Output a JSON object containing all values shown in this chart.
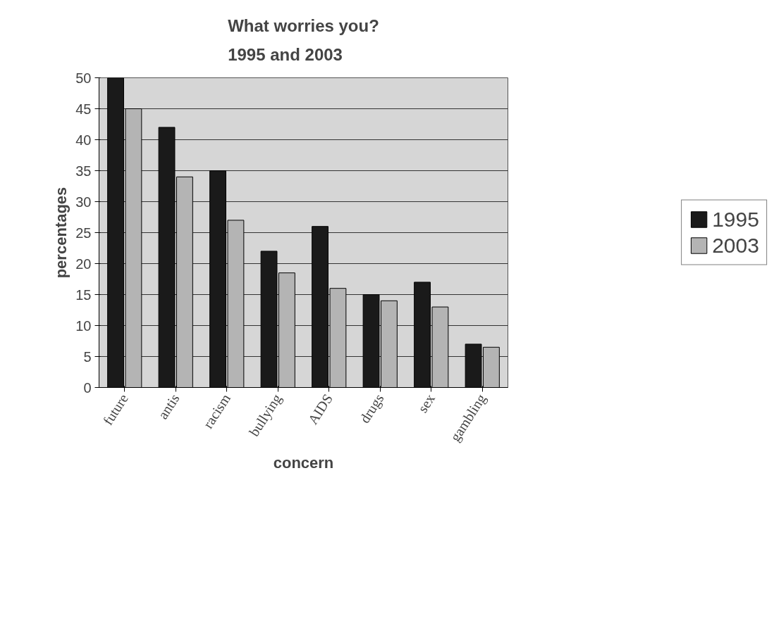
{
  "chart_data": {
    "type": "bar",
    "title": "What worries you?\n1995 and 2003",
    "xlabel": "concern",
    "ylabel": "percentages",
    "categories": [
      "future",
      "antis",
      "racism",
      "bullying",
      "AIDS",
      "drugs",
      "sex",
      "gambling"
    ],
    "series": [
      {
        "name": "1995",
        "color": "#1a1a1a",
        "values": [
          50,
          42,
          35,
          22,
          26,
          15,
          17,
          7
        ]
      },
      {
        "name": "2003",
        "color": "#b4b4b4",
        "values": [
          45,
          34,
          27,
          18.5,
          16,
          14,
          13,
          6.5
        ]
      }
    ],
    "ylim": [
      0,
      50
    ],
    "yticks": [
      0,
      5,
      10,
      15,
      20,
      25,
      30,
      35,
      40,
      45,
      50
    ],
    "grid": "y",
    "legend": "right"
  }
}
